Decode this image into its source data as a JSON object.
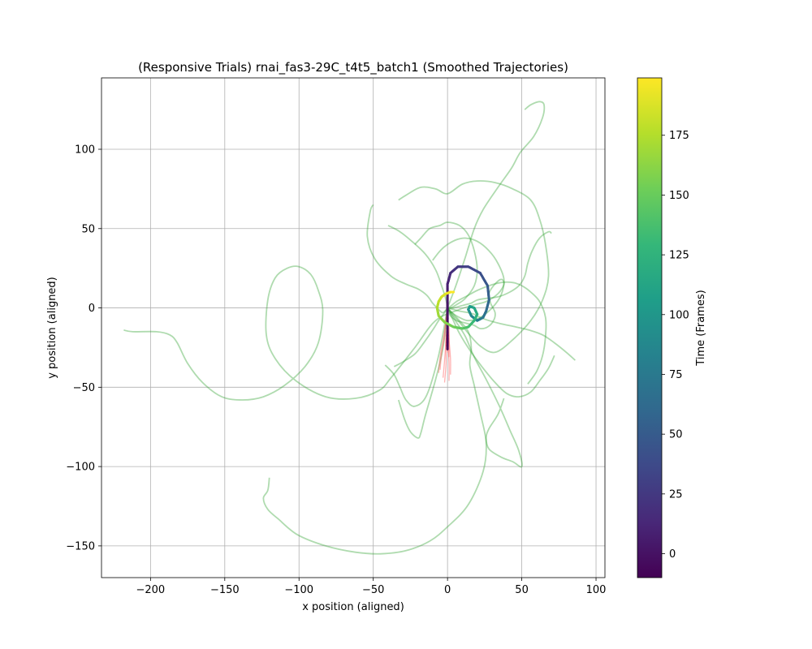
{
  "chart_data": {
    "type": "line",
    "title": "(Responsive Trials) rnai_fas3-29C_t4t5_batch1 (Smoothed Trajectories)",
    "xlabel": "x position (aligned)",
    "ylabel": "y position (aligned)",
    "xlim": [
      -233,
      106
    ],
    "ylim": [
      -170,
      145
    ],
    "xticks": [
      -200,
      -150,
      -100,
      -50,
      0,
      50,
      100
    ],
    "yticks": [
      -150,
      -100,
      -50,
      0,
      50,
      100
    ],
    "xtick_labels": [
      "−200",
      "−150",
      "−100",
      "−50",
      "0",
      "50",
      "100"
    ],
    "ytick_labels": [
      "−150",
      "−100",
      "−50",
      "0",
      "50",
      "100"
    ],
    "grid": true,
    "colorbar": {
      "label": "Time (Frames)",
      "range": [
        -10,
        199
      ],
      "ticks": [
        0,
        25,
        50,
        75,
        100,
        125,
        150,
        175
      ],
      "tick_labels": [
        "0",
        "25",
        "50",
        "75",
        "100",
        "125",
        "150",
        "175"
      ],
      "colormap": "viridis"
    },
    "colors": {
      "trials": "#2ca02c",
      "pre_stimulus": "#ff5555",
      "viridis": [
        "#440154",
        "#482878",
        "#3e4989",
        "#31688e",
        "#26828e",
        "#1f9e89",
        "#35b779",
        "#6ece58",
        "#b5de2b",
        "#fde725"
      ]
    },
    "series": [
      {
        "x": [
          -218,
          -212,
          -196,
          -187,
          -182,
          -175,
          -165,
          -152,
          -138,
          -124,
          -110,
          -96,
          -87,
          -84,
          -87,
          -92,
          -100,
          -108,
          -116,
          -121,
          -122,
          -116,
          -102,
          -82,
          -62,
          -46,
          -38,
          -22,
          -8,
          8,
          18,
          26,
          34,
          38,
          36,
          31,
          28,
          29,
          32,
          31,
          27,
          22,
          18,
          14,
          10,
          6,
          2,
          0
        ],
        "y": [
          -14,
          -15,
          -15,
          -17,
          -22,
          -35,
          -47,
          -56,
          -58,
          -56,
          -49,
          -37,
          -22,
          -2,
          11,
          21,
          26,
          25,
          19,
          5,
          -17,
          -32,
          -46,
          -56,
          -57,
          -52,
          -44,
          -25,
          -8,
          -1,
          2,
          4,
          9,
          15,
          18,
          14,
          9,
          3,
          -3,
          -8,
          -12,
          -13,
          -11,
          -10,
          -9,
          -8,
          -5,
          0
        ]
      },
      {
        "x": [
          -120,
          -121,
          -124,
          -121,
          -114,
          -101,
          -82,
          -62,
          -45,
          -28,
          -12,
          0,
          14,
          24,
          26,
          22,
          18,
          15,
          16,
          14,
          8,
          0
        ],
        "y": [
          -107,
          -115,
          -120,
          -127,
          -133,
          -143,
          -150,
          -154,
          -155,
          -153,
          -147,
          -138,
          -124,
          -103,
          -85,
          -66,
          -49,
          -36,
          -25,
          -15,
          -8,
          0
        ]
      },
      {
        "x": [
          -50,
          -52,
          -54,
          -49,
          -38,
          -28,
          -20,
          -14,
          -10,
          -6,
          -3,
          0
        ],
        "y": [
          65,
          61,
          45,
          31,
          20,
          15,
          12,
          8,
          3,
          -1,
          -3,
          0
        ]
      },
      {
        "x": [
          38,
          34,
          28,
          26,
          28,
          36,
          44,
          50,
          48,
          42,
          35,
          26,
          18,
          12,
          6,
          2,
          0
        ],
        "y": [
          -57,
          -67,
          -76,
          -82,
          -89,
          -94,
          -97,
          -100,
          -90,
          -77,
          -62,
          -45,
          -31,
          -18,
          -9,
          -3,
          0
        ]
      },
      {
        "x": [
          -33,
          -29,
          -25,
          -20,
          -18,
          -15,
          -8,
          -3,
          0
        ],
        "y": [
          -58,
          -70,
          -78,
          -82,
          -79,
          -68,
          -45,
          -25,
          0
        ]
      },
      {
        "x": [
          52,
          56,
          62,
          65,
          64,
          58,
          49,
          43,
          34,
          24,
          18,
          12,
          6,
          2,
          0
        ],
        "y": [
          125,
          128,
          130,
          128,
          120,
          108,
          98,
          88,
          76,
          62,
          50,
          32,
          15,
          5,
          0
        ]
      },
      {
        "x": [
          -33,
          -28,
          -18,
          -8,
          0,
          10,
          20,
          32,
          44,
          56,
          62,
          66,
          68,
          64,
          56,
          44,
          32,
          22,
          14,
          8,
          3,
          0
        ],
        "y": [
          68,
          71,
          76,
          75,
          72,
          78,
          80,
          79,
          75,
          68,
          56,
          40,
          20,
          5,
          -8,
          -20,
          -28,
          -24,
          -16,
          -9,
          -4,
          0
        ]
      },
      {
        "x": [
          70,
          68,
          62,
          57,
          54,
          52,
          48,
          42,
          34,
          26,
          20,
          16,
          12,
          8,
          4,
          2,
          0
        ],
        "y": [
          47,
          48,
          44,
          36,
          28,
          20,
          14,
          10,
          7,
          6,
          5,
          3,
          2,
          1,
          0,
          0,
          0
        ]
      },
      {
        "x": [
          86,
          80,
          72,
          64,
          55,
          46,
          36,
          28,
          22,
          18,
          14,
          8,
          4,
          0
        ],
        "y": [
          -33,
          -28,
          -22,
          -17,
          -14,
          -12,
          -10,
          -8,
          -6,
          -4,
          -3,
          -2,
          -1,
          0
        ]
      },
      {
        "x": [
          -36,
          -30,
          -22,
          -16,
          -10,
          -6,
          -2,
          0
        ],
        "y": [
          -37,
          -34,
          -29,
          -22,
          -14,
          -8,
          -3,
          0
        ]
      },
      {
        "x": [
          -40,
          -32,
          -24,
          -15,
          -8,
          -4,
          -1,
          0
        ],
        "y": [
          52,
          48,
          42,
          34,
          24,
          14,
          5,
          0
        ]
      },
      {
        "x": [
          -42,
          -36,
          -32,
          -28,
          -22,
          -14,
          -6,
          0
        ],
        "y": [
          -36,
          -42,
          -50,
          -58,
          -62,
          -55,
          -30,
          0
        ]
      },
      {
        "x": [
          72,
          68,
          62,
          56,
          48,
          40,
          32,
          24,
          16,
          8,
          3,
          0
        ],
        "y": [
          -30,
          -38,
          -46,
          -53,
          -56,
          -54,
          -47,
          -38,
          -28,
          -16,
          -6,
          0
        ]
      },
      {
        "x": [
          54,
          60,
          64,
          66,
          66,
          62,
          56,
          50,
          44,
          36,
          28,
          20,
          12,
          6,
          2,
          0
        ],
        "y": [
          -48,
          -40,
          -30,
          -18,
          -6,
          4,
          10,
          14,
          16,
          16,
          14,
          11,
          7,
          4,
          1,
          0
        ]
      },
      {
        "x": [
          -10,
          -5,
          0,
          6,
          12,
          20,
          28,
          34,
          38,
          36,
          30,
          22,
          14,
          8,
          3,
          0
        ],
        "y": [
          30,
          36,
          40,
          43,
          44,
          42,
          36,
          28,
          18,
          8,
          0,
          -6,
          -8,
          -6,
          -3,
          0
        ]
      },
      {
        "x": [
          -22,
          -18,
          -12,
          -5,
          0,
          8,
          14,
          18,
          20,
          18,
          12,
          6,
          2,
          0
        ],
        "y": [
          40,
          44,
          50,
          52,
          54,
          52,
          46,
          36,
          24,
          14,
          6,
          2,
          0,
          0
        ]
      }
    ],
    "pre_stimulus": [
      {
        "x": [
          -1,
          -1,
          0,
          0,
          0
        ],
        "y": [
          -24,
          -17,
          -10,
          -4,
          0
        ]
      },
      {
        "x": [
          0,
          0,
          0,
          0,
          0
        ],
        "y": [
          -28,
          -20,
          -12,
          -5,
          0
        ]
      },
      {
        "x": [
          1,
          1,
          1,
          0,
          0
        ],
        "y": [
          -31,
          -22,
          -13,
          -6,
          0
        ]
      },
      {
        "x": [
          -5,
          -4,
          -2,
          -1,
          0
        ],
        "y": [
          -39,
          -29,
          -18,
          -7,
          0
        ]
      },
      {
        "x": [
          -6,
          -5,
          -3,
          -1,
          0
        ],
        "y": [
          -41,
          -31,
          -20,
          -8,
          0
        ]
      },
      {
        "x": [
          2,
          2,
          1,
          0,
          0
        ],
        "y": [
          -42,
          -32,
          -20,
          -8,
          0
        ]
      },
      {
        "x": [
          -3,
          -2,
          -1,
          0,
          0
        ],
        "y": [
          -44,
          -33,
          -21,
          -9,
          0
        ]
      },
      {
        "x": [
          -2,
          -1,
          -1,
          0,
          0
        ],
        "y": [
          -47,
          -35,
          -22,
          -9,
          0
        ]
      },
      {
        "x": [
          1,
          1,
          0,
          0,
          0
        ],
        "y": [
          -46,
          -34,
          -20,
          -8,
          0
        ]
      }
    ],
    "mean_trajectory": {
      "t": [
        -10,
        0,
        8,
        16,
        24,
        32,
        40,
        48,
        56,
        64,
        72,
        80,
        88,
        96,
        104,
        112,
        120,
        128,
        136,
        144,
        152,
        160,
        166,
        172,
        178,
        184,
        190,
        196,
        199
      ],
      "x": [
        0,
        0,
        0,
        2,
        7,
        14,
        22,
        27,
        28,
        26,
        24,
        20,
        16,
        14,
        15,
        18,
        20,
        18,
        14,
        10,
        4,
        -2,
        -6,
        -7,
        -6,
        -4,
        -1,
        2,
        4
      ],
      "y": [
        -26,
        0,
        15,
        22,
        26,
        26,
        22,
        14,
        5,
        -2,
        -6,
        -8,
        -5,
        -1,
        1,
        0,
        -4,
        -8,
        -12,
        -13,
        -12,
        -9,
        -5,
        0,
        4,
        7,
        9,
        10,
        10
      ]
    }
  }
}
